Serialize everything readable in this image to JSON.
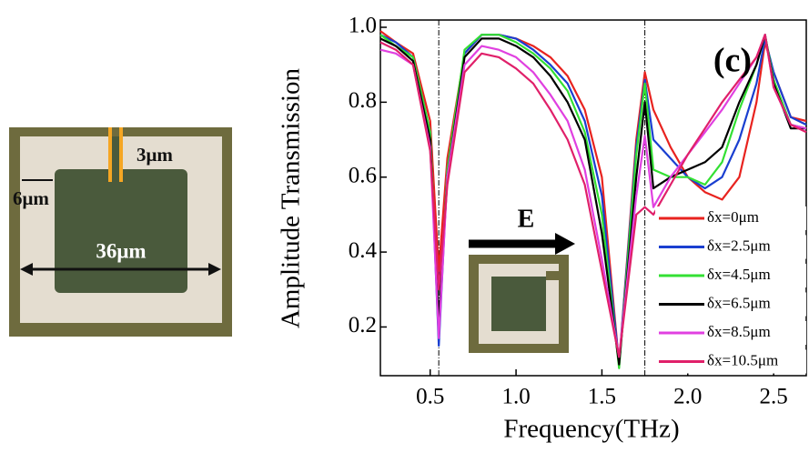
{
  "image_labels": {
    "gap": "3μm",
    "width": "6μm",
    "size": "36μm"
  },
  "chart_data": {
    "type": "line",
    "title": "(c)",
    "x_label": "Frequency(THz)",
    "y_label": "Amplitude Transmission",
    "inset_label": "E",
    "x": [
      0.21,
      0.3,
      0.4,
      0.5,
      0.55,
      0.6,
      0.7,
      0.8,
      0.9,
      1.0,
      1.1,
      1.2,
      1.3,
      1.4,
      1.5,
      1.6,
      1.7,
      1.75,
      1.8,
      1.9,
      2.0,
      2.1,
      2.2,
      2.3,
      2.4,
      2.45,
      2.5,
      2.6,
      2.69
    ],
    "series": [
      {
        "name": "δx=0μm",
        "color": "#e8231f",
        "values": [
          0.99,
          0.96,
          0.93,
          0.75,
          0.35,
          0.65,
          0.93,
          0.98,
          0.98,
          0.97,
          0.95,
          0.92,
          0.87,
          0.78,
          0.6,
          0.1,
          0.7,
          0.88,
          0.78,
          0.68,
          0.6,
          0.56,
          0.54,
          0.6,
          0.8,
          0.96,
          0.88,
          0.76,
          0.75
        ]
      },
      {
        "name": "δx=2.5μm",
        "color": "#1a3fd0",
        "values": [
          0.98,
          0.96,
          0.92,
          0.72,
          0.15,
          0.62,
          0.93,
          0.98,
          0.98,
          0.97,
          0.94,
          0.9,
          0.85,
          0.75,
          0.55,
          0.1,
          0.68,
          0.86,
          0.7,
          0.65,
          0.6,
          0.57,
          0.6,
          0.7,
          0.85,
          0.97,
          0.88,
          0.76,
          0.74
        ]
      },
      {
        "name": "δx=4.5μm",
        "color": "#33e033",
        "values": [
          0.98,
          0.95,
          0.92,
          0.72,
          0.2,
          0.62,
          0.94,
          0.98,
          0.98,
          0.96,
          0.93,
          0.89,
          0.83,
          0.72,
          0.5,
          0.09,
          0.66,
          0.85,
          0.62,
          0.6,
          0.6,
          0.58,
          0.64,
          0.78,
          0.9,
          0.98,
          0.86,
          0.74,
          0.73
        ]
      },
      {
        "name": "δx=6.5μm",
        "color": "#000000",
        "values": [
          0.97,
          0.95,
          0.91,
          0.7,
          0.21,
          0.6,
          0.92,
          0.97,
          0.97,
          0.95,
          0.92,
          0.87,
          0.8,
          0.7,
          0.45,
          0.1,
          0.6,
          0.8,
          0.57,
          0.6,
          0.62,
          0.64,
          0.68,
          0.8,
          0.9,
          0.98,
          0.85,
          0.73,
          0.73
        ]
      },
      {
        "name": "δx=8.5μm",
        "color": "#e040e0",
        "values": [
          0.94,
          0.93,
          0.9,
          0.68,
          0.17,
          0.6,
          0.9,
          0.95,
          0.94,
          0.92,
          0.88,
          0.82,
          0.75,
          0.62,
          0.38,
          0.12,
          0.55,
          0.71,
          0.52,
          0.6,
          0.66,
          0.72,
          0.78,
          0.85,
          0.92,
          0.98,
          0.84,
          0.74,
          0.73
        ]
      },
      {
        "name": "δx=10.5μm",
        "color": "#e0206a",
        "values": [
          0.96,
          0.94,
          0.9,
          0.67,
          0.3,
          0.58,
          0.88,
          0.93,
          0.92,
          0.89,
          0.85,
          0.78,
          0.7,
          0.58,
          0.35,
          0.12,
          0.5,
          0.52,
          0.5,
          0.58,
          0.66,
          0.73,
          0.8,
          0.86,
          0.92,
          0.98,
          0.84,
          0.74,
          0.72
        ]
      }
    ],
    "xlim": [
      0.21,
      2.69
    ],
    "ylim": [
      0.07,
      1.0
    ],
    "xticks": [
      0.5,
      {
        "value": 1,
        "label": "1.0"
      },
      1.5,
      {
        "value": 2,
        "label": "2.0"
      },
      2.5
    ],
    "yticks": [
      0.2,
      0.4,
      0.6,
      0.8,
      {
        "value": 1,
        "label": "1.0"
      }
    ],
    "vlines": [
      0.55,
      1.75
    ]
  }
}
